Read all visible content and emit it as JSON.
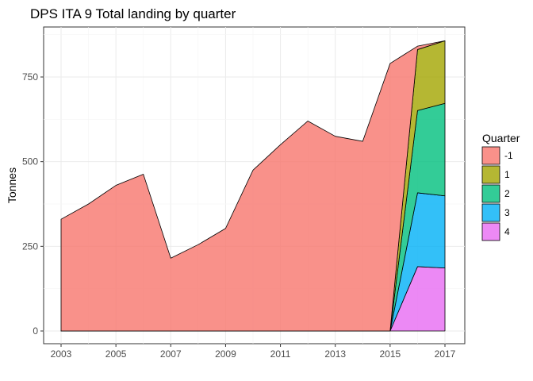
{
  "chart_data": {
    "type": "area",
    "stacked": true,
    "title": "DPS ITA 9 Total landing by quarter",
    "xlabel": "",
    "ylabel": "Tonnes",
    "xlim": [
      2003,
      2017
    ],
    "ylim": [
      0,
      860
    ],
    "x_ticks": [
      2003,
      2005,
      2007,
      2009,
      2011,
      2013,
      2015,
      2017
    ],
    "y_ticks": [
      0,
      250,
      500,
      750
    ],
    "grid": true,
    "legend": {
      "title": "Quarter",
      "position": "right"
    },
    "x": [
      2003,
      2004,
      2005,
      2006,
      2007,
      2008,
      2009,
      2010,
      2011,
      2012,
      2013,
      2014,
      2015,
      2016,
      2017
    ],
    "series": [
      {
        "name": "-1",
        "color": "#F8766D",
        "values": [
          330,
          375,
          430,
          463,
          215,
          255,
          303,
          475,
          550,
          620,
          575,
          560,
          790,
          10,
          0
        ]
      },
      {
        "name": "1",
        "color": "#A3A500",
        "values": [
          0,
          0,
          0,
          0,
          0,
          0,
          0,
          0,
          0,
          0,
          0,
          0,
          0,
          180,
          185
        ]
      },
      {
        "name": "2",
        "color": "#00BF7D",
        "values": [
          0,
          0,
          0,
          0,
          0,
          0,
          0,
          0,
          0,
          0,
          0,
          0,
          0,
          243,
          273
        ]
      },
      {
        "name": "3",
        "color": "#00B0F6",
        "values": [
          0,
          0,
          0,
          0,
          0,
          0,
          0,
          0,
          0,
          0,
          0,
          0,
          0,
          218,
          213
        ]
      },
      {
        "name": "4",
        "color": "#E76BF3",
        "values": [
          0,
          0,
          0,
          0,
          0,
          0,
          0,
          0,
          0,
          0,
          0,
          0,
          0,
          190,
          186
        ]
      }
    ]
  }
}
